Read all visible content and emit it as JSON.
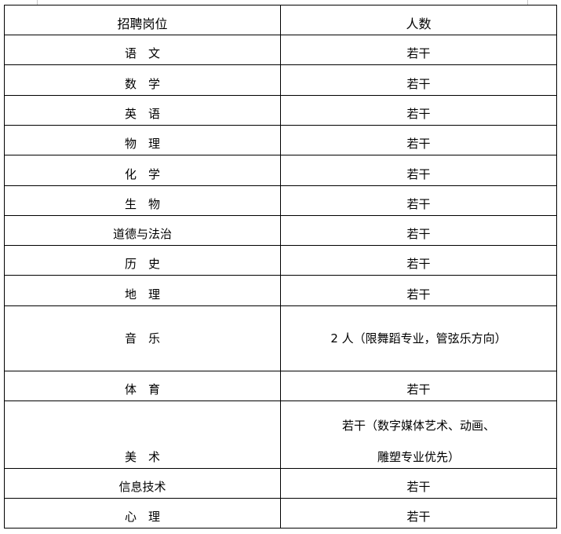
{
  "table": {
    "headers": [
      "招聘岗位",
      "人数"
    ],
    "rows": [
      {
        "position": "语　文",
        "count": "若干"
      },
      {
        "position": "数　学",
        "count": "若干"
      },
      {
        "position": "英　语",
        "count": "若干"
      },
      {
        "position": "物　理",
        "count": "若干"
      },
      {
        "position": "化　学",
        "count": "若干"
      },
      {
        "position": "生　物",
        "count": "若干"
      },
      {
        "position": "道德与法治",
        "count": "若干"
      },
      {
        "position": "历　史",
        "count": "若干"
      },
      {
        "position": "地　理",
        "count": "若干"
      },
      {
        "position": "音　乐",
        "count": "2 人（限舞蹈专业，管弦乐方向）"
      },
      {
        "position": "体　育",
        "count": "若干"
      },
      {
        "position": "美　术",
        "count": "若干（数字媒体艺术、动画、",
        "count_line2": "雕塑专业优先）"
      },
      {
        "position": "信息技术",
        "count": "若干"
      },
      {
        "position": "心　理",
        "count": "若干"
      }
    ]
  }
}
